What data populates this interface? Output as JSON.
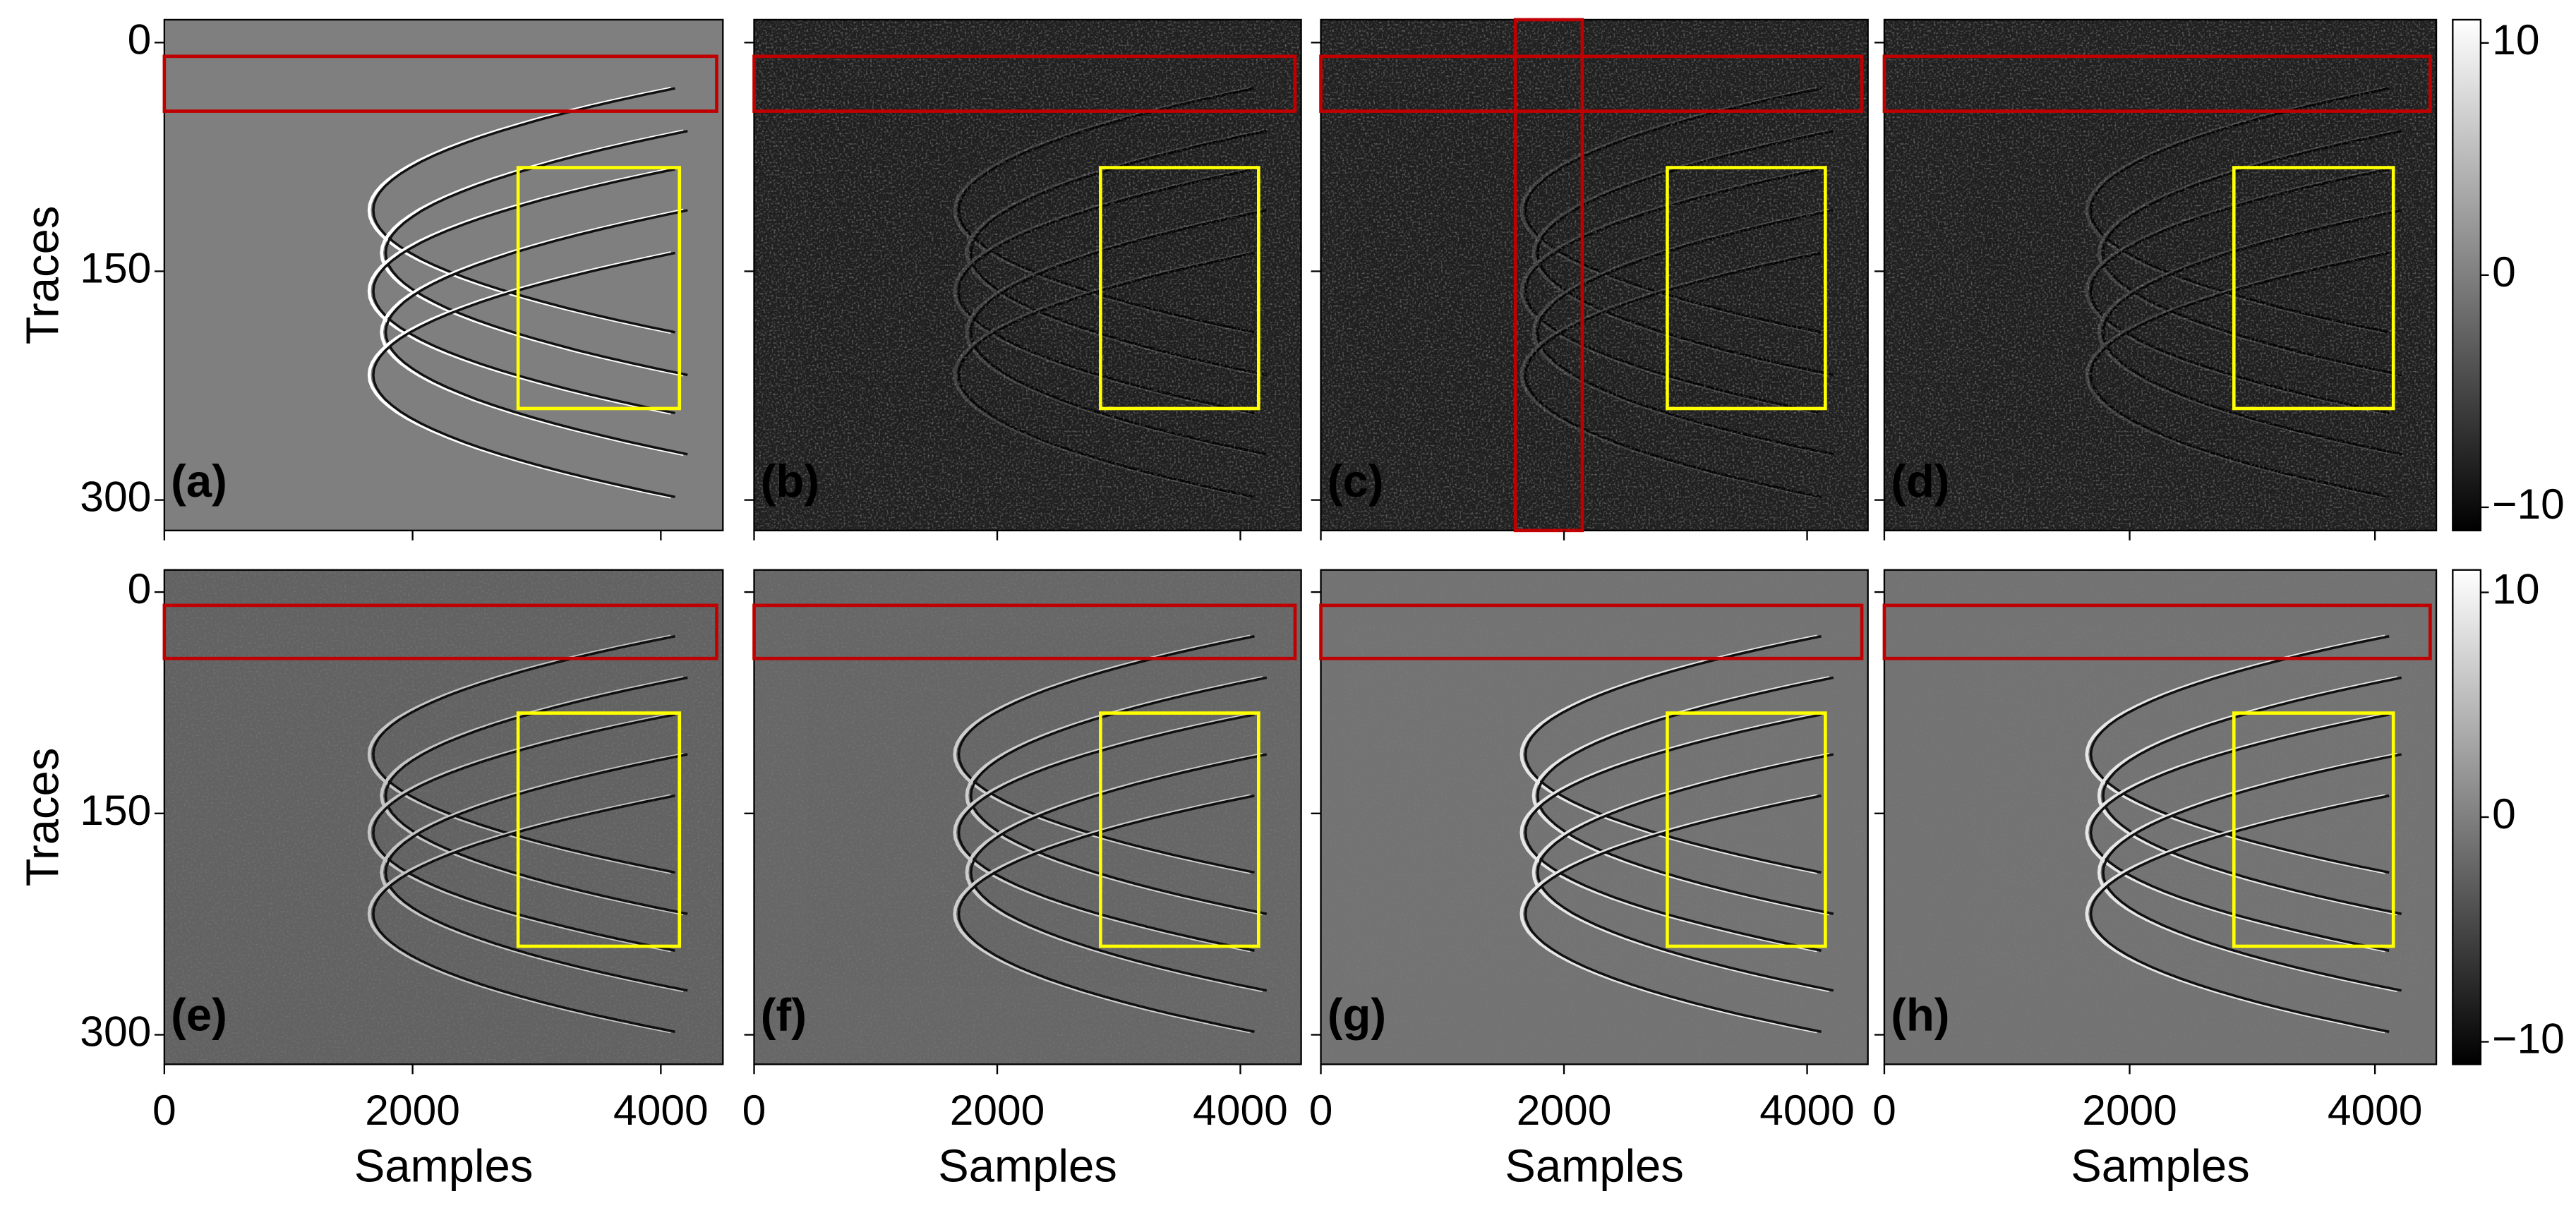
{
  "chart_data": {
    "type": "image-grid",
    "xlabel": "Samples",
    "ylabel": "Traces",
    "xlim": [
      0,
      4500
    ],
    "ylim": [
      -15,
      320
    ],
    "xticks": [
      0,
      2000,
      4000
    ],
    "yticks": [
      0,
      150,
      300
    ],
    "colorbar": {
      "clim": [
        -11,
        11
      ],
      "ticks": [
        10,
        0,
        {
          "value": -10,
          "label": "−10"
        }
      ]
    },
    "panels": [
      {
        "label": "(a)",
        "boxes": [
          {
            "color": "#c00000",
            "x": [
              0,
              4450
            ],
            "y": [
              9,
              45
            ]
          },
          {
            "color": "#ffff00",
            "x": [
              2850,
              4150
            ],
            "y": [
              82,
              240
            ]
          }
        ]
      },
      {
        "label": "(b)",
        "boxes": [
          {
            "color": "#c00000",
            "x": [
              0,
              4450
            ],
            "y": [
              9,
              45
            ]
          },
          {
            "color": "#ffff00",
            "x": [
              2850,
              4150
            ],
            "y": [
              82,
              240
            ]
          }
        ]
      },
      {
        "label": "(c)",
        "boxes": [
          {
            "color": "#c00000",
            "x": [
              0,
              4450
            ],
            "y": [
              9,
              45
            ]
          },
          {
            "color": "#c00000",
            "x": [
              1600,
              2150
            ],
            "y": [
              -15,
              320
            ]
          },
          {
            "color": "#ffff00",
            "x": [
              2850,
              4150
            ],
            "y": [
              82,
              240
            ]
          }
        ]
      },
      {
        "label": "(d)",
        "boxes": [
          {
            "color": "#c00000",
            "x": [
              0,
              4450
            ],
            "y": [
              9,
              45
            ]
          },
          {
            "color": "#ffff00",
            "x": [
              2850,
              4150
            ],
            "y": [
              82,
              240
            ]
          }
        ]
      },
      {
        "label": "(e)",
        "boxes": [
          {
            "color": "#c00000",
            "x": [
              0,
              4450
            ],
            "y": [
              9,
              45
            ]
          },
          {
            "color": "#ffff00",
            "x": [
              2850,
              4150
            ],
            "y": [
              82,
              240
            ]
          }
        ]
      },
      {
        "label": "(f)",
        "boxes": [
          {
            "color": "#c00000",
            "x": [
              0,
              4450
            ],
            "y": [
              9,
              45
            ]
          },
          {
            "color": "#ffff00",
            "x": [
              2850,
              4150
            ],
            "y": [
              82,
              240
            ]
          }
        ]
      },
      {
        "label": "(g)",
        "boxes": [
          {
            "color": "#c00000",
            "x": [
              0,
              4450
            ],
            "y": [
              9,
              45
            ]
          },
          {
            "color": "#ffff00",
            "x": [
              2850,
              4150
            ],
            "y": [
              82,
              240
            ]
          }
        ]
      },
      {
        "label": "(h)",
        "boxes": [
          {
            "color": "#c00000",
            "x": [
              0,
              4450
            ],
            "y": [
              9,
              45
            ]
          },
          {
            "color": "#ffff00",
            "x": [
              2850,
              4150
            ],
            "y": [
              82,
              240
            ]
          }
        ]
      }
    ]
  }
}
